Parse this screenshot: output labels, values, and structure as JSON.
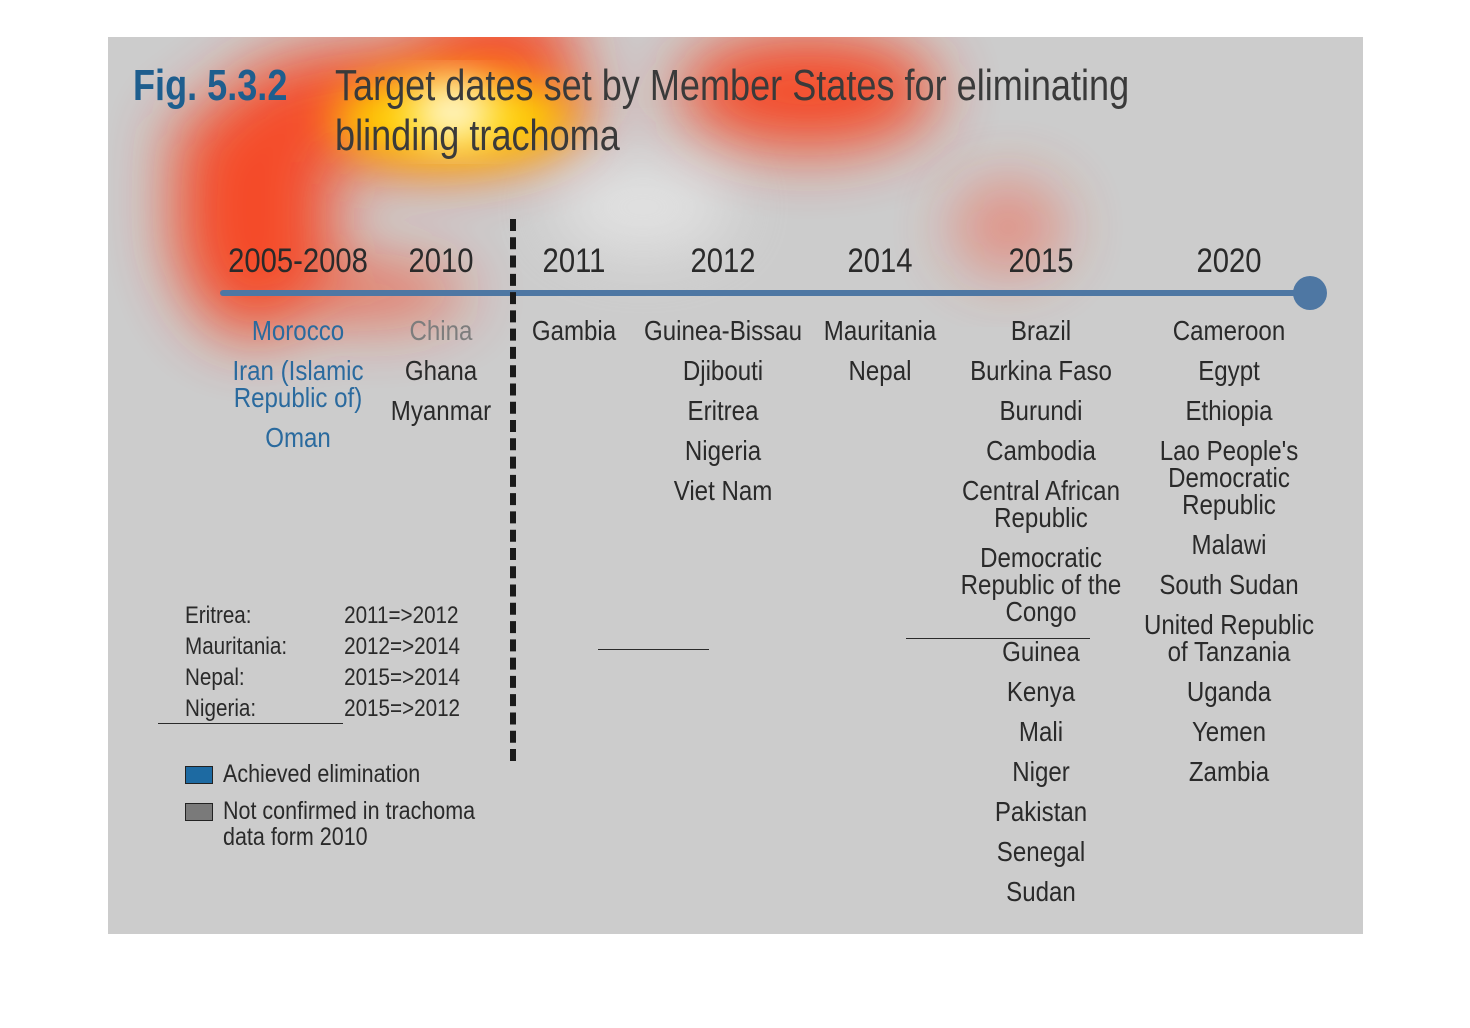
{
  "figure": {
    "number": "Fig. 5.3.2",
    "title_lines": [
      "Target dates set by Member States for eliminating",
      "blinding trachoma"
    ]
  },
  "colors": {
    "background": "#cccccc",
    "timeline": "#4e77a3",
    "achieved": "#2a6a9e",
    "not_confirmed": "#7d7d7d",
    "text": "#2a2a2a"
  },
  "timeline": {
    "columns": [
      {
        "year": "2005-2008",
        "countries": [
          {
            "name": "Morocco",
            "status": "achieved"
          },
          {
            "name": "Iran (Islamic\nRepublic of)",
            "status": "achieved"
          },
          {
            "name": "Oman",
            "status": "achieved"
          }
        ]
      },
      {
        "year": "2010",
        "countries": [
          {
            "name": "China",
            "status": "not_confirmed"
          },
          {
            "name": "Ghana",
            "status": ""
          },
          {
            "name": "Myanmar",
            "status": ""
          }
        ]
      },
      {
        "year": "2011",
        "countries": [
          {
            "name": "Gambia",
            "status": ""
          }
        ]
      },
      {
        "year": "2012",
        "countries": [
          {
            "name": "Guinea-Bissau",
            "status": ""
          },
          {
            "name": "Djibouti",
            "status": ""
          },
          {
            "name": "Eritrea",
            "status": ""
          },
          {
            "name": "Nigeria",
            "status": ""
          },
          {
            "name": "Viet Nam",
            "status": ""
          }
        ]
      },
      {
        "year": "2014",
        "countries": [
          {
            "name": "Mauritania",
            "status": ""
          },
          {
            "name": "Nepal",
            "status": ""
          }
        ]
      },
      {
        "year": "2015",
        "countries": [
          {
            "name": "Brazil",
            "status": ""
          },
          {
            "name": "Burkina Faso",
            "status": ""
          },
          {
            "name": "Burundi",
            "status": ""
          },
          {
            "name": "Cambodia",
            "status": ""
          },
          {
            "name": "Central African\nRepublic",
            "status": ""
          },
          {
            "name": "Democratic\nRepublic of the\nCongo",
            "status": ""
          },
          {
            "name": "Guinea",
            "status": ""
          },
          {
            "name": "Kenya",
            "status": ""
          },
          {
            "name": "Mali",
            "status": ""
          },
          {
            "name": "Niger",
            "status": ""
          },
          {
            "name": "Pakistan",
            "status": ""
          },
          {
            "name": "Senegal",
            "status": ""
          },
          {
            "name": "Sudan",
            "status": ""
          }
        ]
      },
      {
        "year": "2020",
        "countries": [
          {
            "name": "Cameroon",
            "status": ""
          },
          {
            "name": "Egypt",
            "status": ""
          },
          {
            "name": "Ethiopia",
            "status": ""
          },
          {
            "name": "Lao People's\nDemocratic\nRepublic",
            "status": ""
          },
          {
            "name": "Malawi",
            "status": ""
          },
          {
            "name": "South Sudan",
            "status": ""
          },
          {
            "name": "United Republic\nof Tanzania",
            "status": ""
          },
          {
            "name": "Uganda",
            "status": ""
          },
          {
            "name": "Yemen",
            "status": ""
          },
          {
            "name": "Zambia",
            "status": ""
          }
        ]
      }
    ]
  },
  "changes": [
    {
      "country": "Eritrea:",
      "change": "2011=>2012"
    },
    {
      "country": "Mauritania:",
      "change": "2012=>2014"
    },
    {
      "country": "Nepal:",
      "change": "2015=>2014"
    },
    {
      "country": "Nigeria:",
      "change": "2015=>2012"
    }
  ],
  "legend": [
    {
      "label": "Achieved elimination",
      "color": "#1d6aa2"
    },
    {
      "label": "Not confirmed in trachoma data form 2010",
      "color": "#7a7a7a"
    }
  ]
}
